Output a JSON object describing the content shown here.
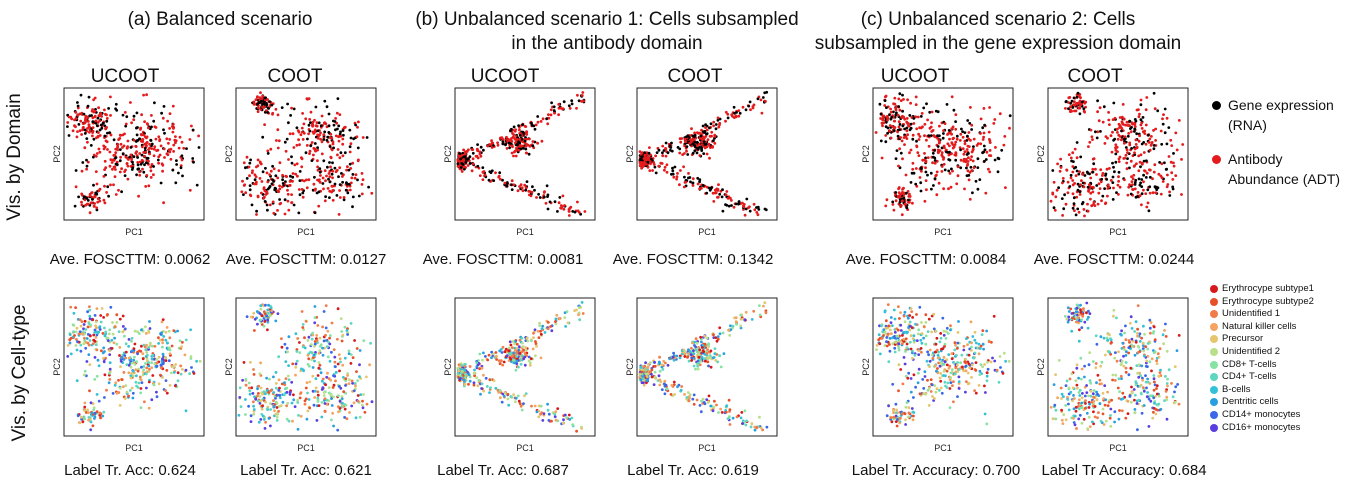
{
  "figure": {
    "scenarios": [
      {
        "title": "(a) Balanced scenario"
      },
      {
        "title": "(b) Unbalanced scenario 1:  Cells subsampled in the antibody domain"
      },
      {
        "title": "(c) Unbalanced scenario 2:  Cells subsampled in the gene expression domain"
      }
    ],
    "row_labels": [
      "Vis. by Domain",
      "Vis. by Cell-type"
    ],
    "method_labels": [
      "UCOOT",
      "COOT",
      "UCOOT",
      "COOT",
      "UCOOT",
      "COOT"
    ],
    "axis_labels": {
      "x": "PC1",
      "y": "PC2"
    },
    "domain_metrics": [
      "Ave. FOSCTTM: 0.0062",
      "Ave. FOSCTTM: 0.0127",
      "Ave. FOSCTTM: 0.0081",
      "Ave. FOSCTTM: 0.1342",
      "Ave. FOSCTTM: 0.0084",
      "Ave. FOSCTTM: 0.0244"
    ],
    "celltype_metrics": [
      "Label Tr. Acc: 0.624",
      "Label Tr. Acc: 0.621",
      "Label Tr. Acc: 0.687",
      "Label Tr. Acc: 0.619",
      "Label Tr. Accuracy: 0.700",
      "Label Tr Accuracy: 0.684"
    ]
  },
  "domain_legend": [
    {
      "label_line1": "Gene expression",
      "label_line2": "(RNA)",
      "color": "#000000"
    },
    {
      "label_line1": "Antibody",
      "label_line2": "Abundance (ADT)",
      "color": "#e41a1c"
    }
  ],
  "celltype_legend": [
    {
      "label": "Erythrocype subtype1",
      "color": "#d7191c"
    },
    {
      "label": "Erythrocype subtype2",
      "color": "#e8502a"
    },
    {
      "label": "Unidentified 1",
      "color": "#f07c4a"
    },
    {
      "label": "Natural killer cells",
      "color": "#f4a460"
    },
    {
      "label": "Precursor",
      "color": "#e6c56e"
    },
    {
      "label": "Unidentified 2",
      "color": "#b8e08a"
    },
    {
      "label": "CD8+ T-cells",
      "color": "#86e3a2"
    },
    {
      "label": "CD4+ T-cells",
      "color": "#5ed6c0"
    },
    {
      "label": "B-cells",
      "color": "#33c1d6"
    },
    {
      "label": "Dentritic cells",
      "color": "#2a9fe0"
    },
    {
      "label": "CD14+ monocytes",
      "color": "#3a66e8"
    },
    {
      "label": "CD16+ monocytes",
      "color": "#5b3ee0"
    }
  ],
  "chart_data": {
    "type": "scatter",
    "panels": 12,
    "note_series": [
      "Gene expression (RNA)",
      "Antibody Abundance (ADT)"
    ],
    "grid": false
  }
}
